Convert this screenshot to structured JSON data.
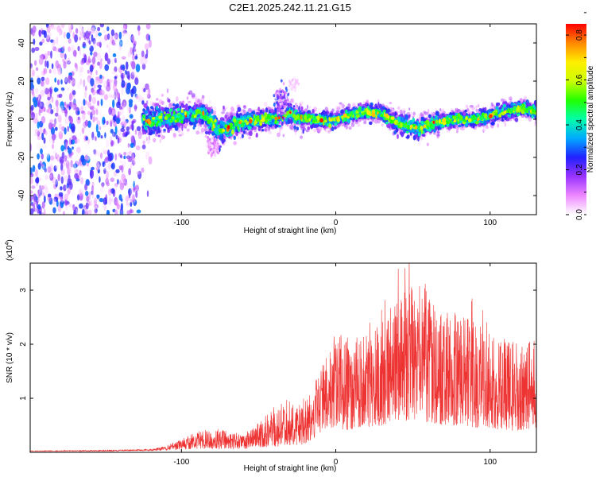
{
  "figure": {
    "title": "C2E1.2025.242.11.21.G15"
  },
  "chart_data": [
    {
      "type": "heatmap",
      "name": "spectrogram",
      "xlabel": "Height of straight line (km)",
      "ylabel": "Frequency (Hz)",
      "xlim": [
        -198,
        130
      ],
      "ylim": [
        -50,
        50
      ],
      "xticks": [
        -100,
        0,
        100
      ],
      "yticks": [
        -40,
        -20,
        0,
        20,
        40
      ],
      "colorbar": {
        "label": "Normalized spectral amplitude",
        "range": [
          0,
          0.85
        ],
        "ticks": [
          0.0,
          0.2,
          0.4,
          0.6,
          0.8
        ],
        "colormap": [
          "#ffffff",
          "#ee88ff",
          "#9933ff",
          "#2222ff",
          "#00aaff",
          "#00ffaa",
          "#22ff00",
          "#ccff00",
          "#ffee00",
          "#ff8800",
          "#ff0000"
        ]
      },
      "noise_region_x": [
        -198,
        -120
      ],
      "signal_band": {
        "x": [
          -125,
          -115,
          -105,
          -95,
          -85,
          -80,
          -75,
          -65,
          -55,
          -45,
          -35,
          -30,
          -25,
          -15,
          -5,
          0,
          10,
          20,
          30,
          40,
          50,
          55,
          60,
          70,
          80,
          90,
          100,
          110,
          120,
          130
        ],
        "center_freq": [
          -1,
          0,
          1,
          2,
          3,
          -2,
          -6,
          -3,
          -1,
          0,
          1,
          3,
          1,
          0,
          -1,
          0,
          2,
          4,
          3,
          -2,
          -4,
          -5,
          -3,
          -1,
          0,
          0,
          2,
          4,
          6,
          4
        ],
        "half_width": [
          8,
          7,
          6,
          6,
          6,
          6,
          7,
          6,
          5,
          5,
          5,
          5,
          5,
          4,
          4,
          4,
          4,
          4,
          4,
          5,
          5,
          5,
          5,
          4,
          4,
          4,
          4,
          4,
          4,
          4
        ]
      }
    },
    {
      "type": "line",
      "name": "snr",
      "xlabel": "Height of straight line (km)",
      "ylabel": "SNR (10 * v/v)",
      "yscale_label_main": "(x10",
      "yscale_label_exp": "4",
      "yscale_label_close": ")",
      "xlim": [
        -198,
        130
      ],
      "ylim": [
        0,
        3.5
      ],
      "xticks": [
        -100,
        0,
        100
      ],
      "yticks": [
        1,
        2,
        3
      ],
      "color": "#ee3333",
      "envelope": {
        "x": [
          -198,
          -150,
          -120,
          -110,
          -100,
          -90,
          -80,
          -70,
          -60,
          -50,
          -40,
          -30,
          -20,
          -10,
          0,
          10,
          20,
          30,
          40,
          50,
          60,
          70,
          80,
          90,
          100,
          110,
          120,
          130
        ],
        "upper": [
          0.03,
          0.04,
          0.06,
          0.12,
          0.25,
          0.38,
          0.45,
          0.4,
          0.35,
          0.55,
          0.85,
          1.0,
          1.05,
          1.5,
          2.3,
          2.1,
          2.2,
          2.4,
          2.9,
          3.2,
          3.1,
          2.7,
          2.6,
          2.4,
          2.2,
          2.1,
          2.0,
          2.3
        ],
        "lower": [
          0.02,
          0.02,
          0.03,
          0.04,
          0.05,
          0.06,
          0.06,
          0.06,
          0.06,
          0.08,
          0.1,
          0.12,
          0.15,
          0.3,
          0.45,
          0.4,
          0.45,
          0.5,
          0.55,
          0.6,
          0.55,
          0.5,
          0.5,
          0.45,
          0.45,
          0.4,
          0.4,
          0.45
        ]
      }
    }
  ]
}
